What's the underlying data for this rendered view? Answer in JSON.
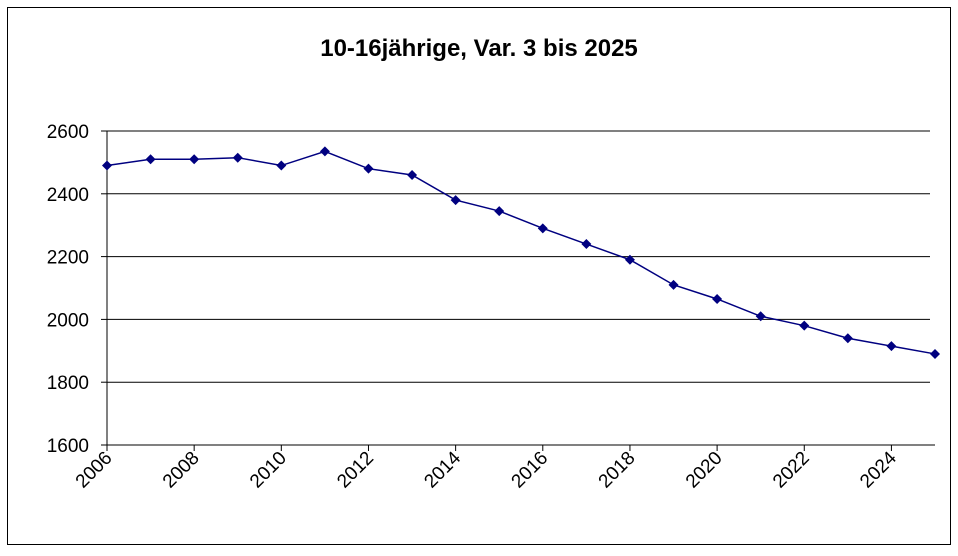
{
  "chart_data": {
    "type": "line",
    "title": "10-16jährige, Var. 3 bis 2025",
    "x": [
      2006,
      2007,
      2008,
      2009,
      2010,
      2011,
      2012,
      2013,
      2014,
      2015,
      2016,
      2017,
      2018,
      2019,
      2020,
      2021,
      2022,
      2023,
      2024,
      2025
    ],
    "series": [
      {
        "color": "#000080",
        "values": [
          2490,
          2510,
          2510,
          2515,
          2490,
          2535,
          2480,
          2460,
          2380,
          2345,
          2290,
          2240,
          2190,
          2110,
          2065,
          2010,
          1980,
          1940,
          1915,
          1890
        ]
      }
    ],
    "xlim": [
      2006,
      2025
    ],
    "xticks": [
      2006,
      2008,
      2010,
      2012,
      2014,
      2016,
      2018,
      2020,
      2022,
      2024
    ],
    "ylim": [
      1600,
      2600
    ],
    "yticks": [
      1600,
      1800,
      2000,
      2200,
      2400,
      2600
    ],
    "grid": true
  }
}
